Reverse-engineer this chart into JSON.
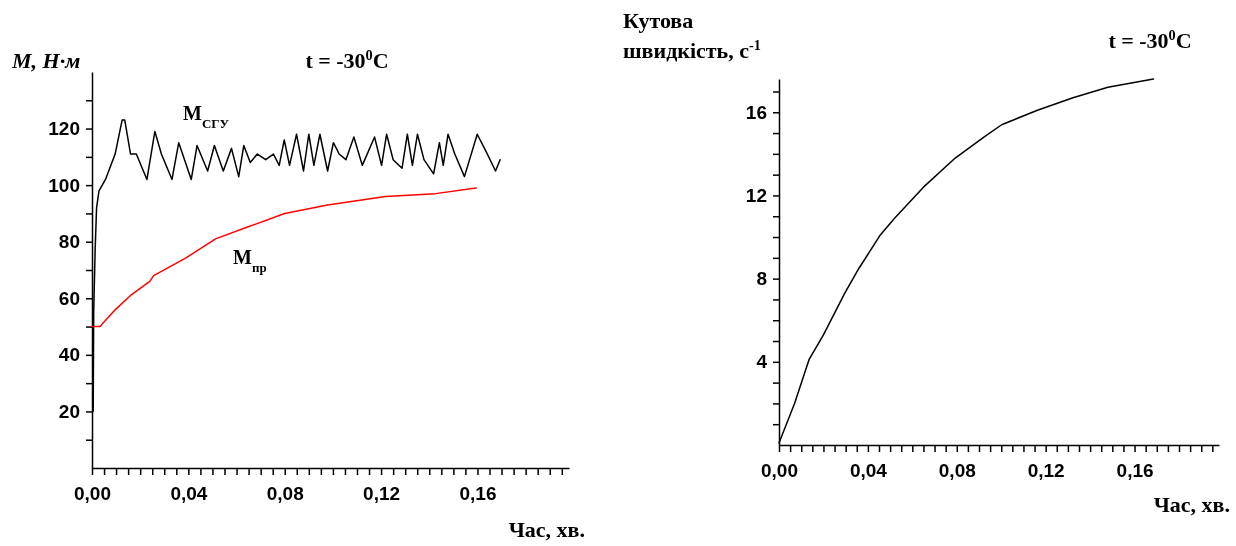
{
  "chart_data": [
    {
      "type": "line",
      "title": "t = -30$^{0}$C",
      "ylabel": "M, Н·м",
      "xlabel": "Час, хв.",
      "xlim": [
        0,
        0.198
      ],
      "ylim": [
        0,
        140
      ],
      "xticks": [
        {
          "value": 0,
          "label": "0,00"
        },
        {
          "value": 0.005,
          "label": null
        },
        {
          "value": 0.01,
          "label": null
        },
        {
          "value": 0.015,
          "label": null
        },
        {
          "value": 0.02,
          "label": null
        },
        {
          "value": 0.025,
          "label": null
        },
        {
          "value": 0.03,
          "label": null
        },
        {
          "value": 0.035,
          "label": null
        },
        {
          "value": 0.04,
          "label": "0,04"
        },
        {
          "value": 0.045,
          "label": null
        },
        {
          "value": 0.05,
          "label": null
        },
        {
          "value": 0.055,
          "label": null
        },
        {
          "value": 0.06,
          "label": null
        },
        {
          "value": 0.065,
          "label": null
        },
        {
          "value": 0.07,
          "label": null
        },
        {
          "value": 0.075,
          "label": null
        },
        {
          "value": 0.08,
          "label": "0,08"
        },
        {
          "value": 0.085,
          "label": null
        },
        {
          "value": 0.09,
          "label": null
        },
        {
          "value": 0.095,
          "label": null
        },
        {
          "value": 0.1,
          "label": null
        },
        {
          "value": 0.105,
          "label": null
        },
        {
          "value": 0.11,
          "label": null
        },
        {
          "value": 0.115,
          "label": null
        },
        {
          "value": 0.12,
          "label": "0,12"
        },
        {
          "value": 0.125,
          "label": null
        },
        {
          "value": 0.13,
          "label": null
        },
        {
          "value": 0.135,
          "label": null
        },
        {
          "value": 0.14,
          "label": null
        },
        {
          "value": 0.145,
          "label": null
        },
        {
          "value": 0.15,
          "label": null
        },
        {
          "value": 0.155,
          "label": null
        },
        {
          "value": 0.16,
          "label": "0,16"
        },
        {
          "value": 0.165,
          "label": null
        },
        {
          "value": 0.17,
          "label": null
        },
        {
          "value": 0.175,
          "label": null
        },
        {
          "value": 0.18,
          "label": null
        },
        {
          "value": 0.185,
          "label": null
        },
        {
          "value": 0.19,
          "label": null
        },
        {
          "value": 0.195,
          "label": null
        }
      ],
      "yticks": [
        {
          "value": 10,
          "label": null
        },
        20,
        {
          "value": 30,
          "label": null
        },
        40,
        {
          "value": 50,
          "label": null
        },
        60,
        {
          "value": 70,
          "label": null
        },
        80,
        {
          "value": 90,
          "label": null
        },
        100,
        {
          "value": 110,
          "label": null
        },
        120,
        {
          "value": 130,
          "label": null
        }
      ],
      "series": [
        {
          "name": "M$_{СГУ}$",
          "color": "#000000",
          "x": [
            0.0005,
            0.0007,
            0.0013,
            0.0019,
            0.0029,
            0.0056,
            0.0096,
            0.0125,
            0.0136,
            0.016,
            0.0184,
            0.0228,
            0.0261,
            0.0288,
            0.0332,
            0.036,
            0.0412,
            0.0436,
            0.048,
            0.0508,
            0.0545,
            0.0579,
            0.0609,
            0.063,
            0.0657,
            0.0686,
            0.0721,
            0.0753,
            0.0777,
            0.0798,
            0.082,
            0.0849,
            0.0878,
            0.09,
            0.0921,
            0.0946,
            0.0978,
            0.1002,
            0.1026,
            0.1054,
            0.1087,
            0.1122,
            0.1173,
            0.1202,
            0.1223,
            0.125,
            0.1287,
            0.1309,
            0.133,
            0.1351,
            0.1378,
            0.1418,
            0.1442,
            0.1458,
            0.1478,
            0.1506,
            0.1546,
            0.1599,
            0.1635,
            0.1675,
            0.1694
          ],
          "values": [
            20,
            55,
            77,
            92,
            98,
            102,
            111,
            123,
            123,
            111,
            111,
            102,
            119,
            111,
            102,
            115,
            102,
            114,
            105,
            114,
            105,
            113,
            103,
            114,
            108,
            111,
            109,
            111,
            107,
            116,
            107,
            118,
            105,
            118,
            107,
            118,
            105,
            115,
            111,
            109,
            117,
            107,
            117,
            107,
            118,
            109,
            106,
            118,
            107,
            118,
            109,
            104,
            115,
            107,
            118,
            111,
            103,
            118,
            112,
            105,
            109
          ]
        },
        {
          "name": "M$_{пр}$",
          "color": "#ff0000",
          "x": [
            0,
            0.0033,
            0.0097,
            0.016,
            0.024,
            0.0256,
            0.0385,
            0.0513,
            0.064,
            0.08,
            0.0978,
            0.1218,
            0.1426,
            0.1595
          ],
          "values": [
            50,
            50,
            56,
            61,
            66,
            68,
            74,
            81,
            85,
            90,
            93,
            96,
            97,
            99
          ]
        }
      ]
    },
    {
      "type": "line",
      "title": "t = -30$^{0}$C",
      "ylabel": "Кутова швидкість, с$^{-1}$",
      "xlabel": "Час, хв.",
      "xlim": [
        0,
        0.198
      ],
      "ylim": [
        0,
        17.6
      ],
      "xticks": [
        {
          "value": 0,
          "label": "0,00"
        },
        {
          "value": 0.005,
          "label": null
        },
        {
          "value": 0.01,
          "label": null
        },
        {
          "value": 0.015,
          "label": null
        },
        {
          "value": 0.02,
          "label": null
        },
        {
          "value": 0.025,
          "label": null
        },
        {
          "value": 0.03,
          "label": null
        },
        {
          "value": 0.035,
          "label": null
        },
        {
          "value": 0.04,
          "label": "0,04"
        },
        {
          "value": 0.045,
          "label": null
        },
        {
          "value": 0.05,
          "label": null
        },
        {
          "value": 0.055,
          "label": null
        },
        {
          "value": 0.06,
          "label": null
        },
        {
          "value": 0.065,
          "label": null
        },
        {
          "value": 0.07,
          "label": null
        },
        {
          "value": 0.075,
          "label": null
        },
        {
          "value": 0.08,
          "label": "0,08"
        },
        {
          "value": 0.085,
          "label": null
        },
        {
          "value": 0.09,
          "label": null
        },
        {
          "value": 0.095,
          "label": null
        },
        {
          "value": 0.1,
          "label": null
        },
        {
          "value": 0.105,
          "label": null
        },
        {
          "value": 0.11,
          "label": null
        },
        {
          "value": 0.115,
          "label": null
        },
        {
          "value": 0.12,
          "label": "0,12"
        },
        {
          "value": 0.125,
          "label": null
        },
        {
          "value": 0.13,
          "label": null
        },
        {
          "value": 0.135,
          "label": null
        },
        {
          "value": 0.14,
          "label": null
        },
        {
          "value": 0.145,
          "label": null
        },
        {
          "value": 0.15,
          "label": null
        },
        {
          "value": 0.155,
          "label": null
        },
        {
          "value": 0.16,
          "label": "0,16"
        },
        {
          "value": 0.165,
          "label": null
        },
        {
          "value": 0.17,
          "label": null
        },
        {
          "value": 0.175,
          "label": null
        },
        {
          "value": 0.18,
          "label": null
        },
        {
          "value": 0.185,
          "label": null
        },
        {
          "value": 0.19,
          "label": null
        },
        {
          "value": 0.195,
          "label": null
        }
      ],
      "yticks": [
        {
          "value": 1,
          "label": null
        },
        {
          "value": 2,
          "label": null
        },
        {
          "value": 3,
          "label": null
        },
        4,
        {
          "value": 5,
          "label": null
        },
        {
          "value": 6,
          "label": null
        },
        {
          "value": 7,
          "label": null
        },
        8,
        {
          "value": 9,
          "label": null
        },
        {
          "value": 10,
          "label": null
        },
        {
          "value": 11,
          "label": null
        },
        12,
        {
          "value": 13,
          "label": null
        },
        {
          "value": 14,
          "label": null
        },
        {
          "value": 15,
          "label": null
        },
        16,
        {
          "value": 17,
          "label": null
        }
      ],
      "series": [
        {
          "color": "#000000",
          "x": [
            0,
            0.007,
            0.0135,
            0.02,
            0.0296,
            0.036,
            0.0456,
            0.052,
            0.065,
            0.0793,
            0.0922,
            0.1002,
            0.1163,
            0.1323,
            0.148,
            0.1685
          ],
          "values": [
            0.1,
            2.0,
            4.1,
            5.3,
            7.3,
            8.5,
            10.1,
            10.9,
            12.4,
            13.8,
            14.8,
            15.4,
            16.1,
            16.7,
            17.2,
            17.6
          ]
        }
      ]
    }
  ]
}
